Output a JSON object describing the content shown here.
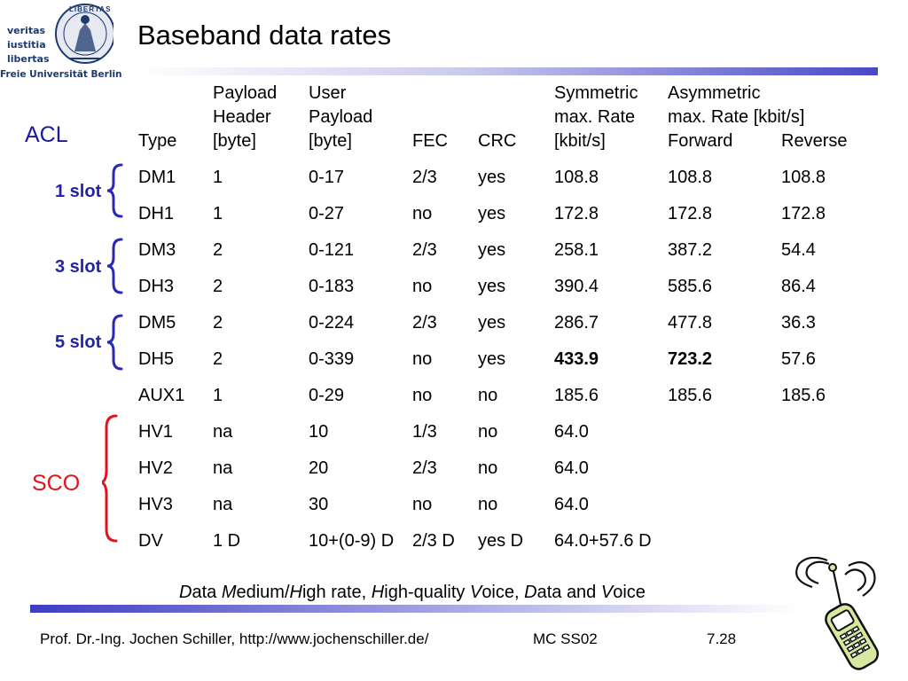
{
  "logo": {
    "words": [
      "veritas",
      "iustitia",
      "libertas"
    ],
    "seal_text": "LIBERTAS",
    "university": "Freie Universität Berlin"
  },
  "title": "Baseband data rates",
  "table": {
    "headers": {
      "type": "Type",
      "payload_header": "Payload\nHeader\n[byte]",
      "user_payload": "User\nPayload\n[byte]",
      "fec": "FEC",
      "crc": "CRC",
      "symmetric": "Symmetric\nmax. Rate\n[kbit/s]",
      "asymmetric": "Asymmetric\nmax. Rate [kbit/s]",
      "forward": "Forward",
      "reverse": "Reverse"
    },
    "rows": [
      {
        "type": "DM1",
        "header": "1",
        "payload": "0-17",
        "fec": "2/3",
        "crc": "yes",
        "sym": "108.8",
        "fwd": "108.8",
        "rev": "108.8"
      },
      {
        "type": "DH1",
        "header": "1",
        "payload": "0-27",
        "fec": "no",
        "crc": "yes",
        "sym": "172.8",
        "fwd": "172.8",
        "rev": "172.8"
      },
      {
        "type": "DM3",
        "header": "2",
        "payload": "0-121",
        "fec": "2/3",
        "crc": "yes",
        "sym": "258.1",
        "fwd": "387.2",
        "rev": "54.4"
      },
      {
        "type": "DH3",
        "header": "2",
        "payload": "0-183",
        "fec": "no",
        "crc": "yes",
        "sym": "390.4",
        "fwd": "585.6",
        "rev": "86.4"
      },
      {
        "type": "DM5",
        "header": "2",
        "payload": "0-224",
        "fec": "2/3",
        "crc": "yes",
        "sym": "286.7",
        "fwd": "477.8",
        "rev": "36.3"
      },
      {
        "type": "DH5",
        "header": "2",
        "payload": "0-339",
        "fec": "no",
        "crc": "yes",
        "sym": "433.9",
        "fwd": "723.2",
        "rev": "57.6"
      },
      {
        "type": "AUX1",
        "header": "1",
        "payload": "0-29",
        "fec": "no",
        "crc": "no",
        "sym": "185.6",
        "fwd": "185.6",
        "rev": "185.6"
      },
      {
        "type": "HV1",
        "header": "na",
        "payload": "10",
        "fec": "1/3",
        "crc": "no",
        "sym": "64.0",
        "fwd": "",
        "rev": ""
      },
      {
        "type": "HV2",
        "header": "na",
        "payload": "20",
        "fec": "2/3",
        "crc": "no",
        "sym": "64.0",
        "fwd": "",
        "rev": ""
      },
      {
        "type": "HV3",
        "header": "na",
        "payload": "30",
        "fec": "no",
        "crc": "no",
        "sym": "64.0",
        "fwd": "",
        "rev": ""
      },
      {
        "type": "DV",
        "header": "1 D",
        "payload": "10+(0-9) D",
        "fec": "2/3 D",
        "crc": "yes D",
        "sym": "64.0+57.6 D",
        "fwd": "",
        "rev": ""
      }
    ]
  },
  "groups": {
    "acl": "ACL",
    "slot1": "1 slot",
    "slot3": "3 slot",
    "slot5": "5 slot",
    "sco": "SCO"
  },
  "subtitle": {
    "parts": [
      "D",
      "ata ",
      "M",
      "edium/",
      "H",
      "igh rate, ",
      "H",
      "igh-quality ",
      "V",
      "oice, ",
      "D",
      "ata and ",
      "V",
      "oice"
    ]
  },
  "footer": {
    "author": "Prof. Dr.-Ing. Jochen Schiller, http://www.jochenschiller.de/",
    "course": "MC SS02",
    "page": "7.28"
  },
  "colors": {
    "group_blue": "#2323a8",
    "sco_red": "#e0141e",
    "acl_blue": "#1a1aa0",
    "brace_blue": "#2a2ab8",
    "brace_red": "#e0141e"
  },
  "icons": [
    "university-seal-icon",
    "mobile-phone-icon"
  ]
}
